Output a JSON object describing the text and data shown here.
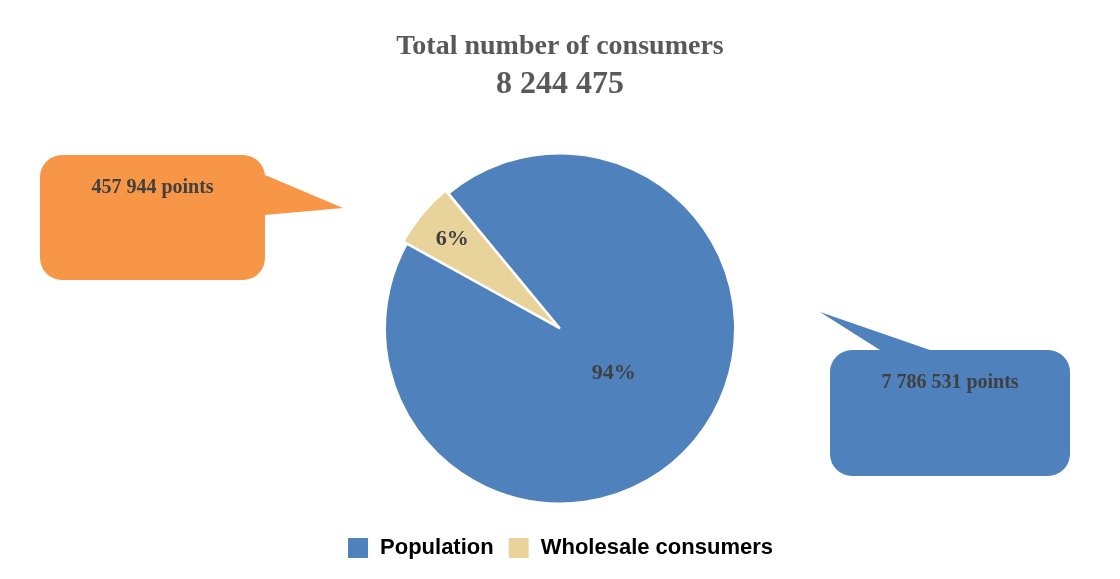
{
  "chart_data": {
    "type": "pie",
    "title": "Total number of consumers",
    "subtitle": "8 244 475",
    "categories": [
      "Population",
      "Wholesale consumers"
    ],
    "values": [
      94,
      6
    ],
    "colors": [
      "#4f81bd",
      "#e8d49a"
    ],
    "value_labels": [
      "94%",
      "6%"
    ],
    "annotations": [
      "457 944 points",
      "7 786 531 points"
    ],
    "legend": "bottom"
  }
}
